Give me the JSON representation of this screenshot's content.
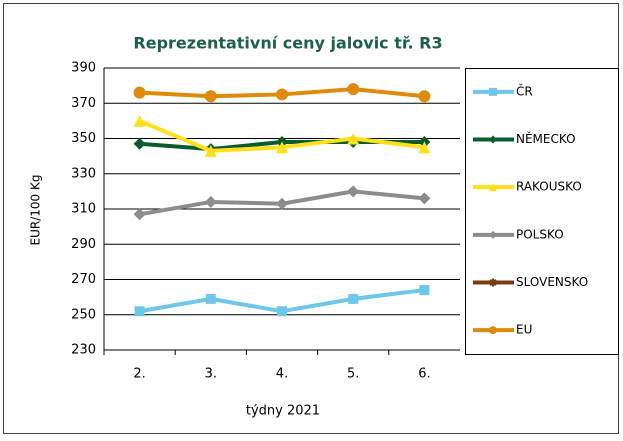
{
  "chart_data": {
    "type": "line",
    "title": "Reprezentativní  ceny jalovic tř. R3",
    "x_label": "týdny 2021",
    "y_label": "EUR/100 Kg",
    "categories": [
      "2.",
      "3.",
      "4.",
      "5.",
      "6."
    ],
    "ylim": [
      230,
      390
    ],
    "yticks": [
      230,
      250,
      270,
      290,
      310,
      330,
      350,
      370,
      390
    ],
    "grid": true,
    "legend": "right",
    "series": [
      {
        "name": "ČR",
        "color": "#6ec6ea",
        "marker": "square",
        "values": [
          252,
          259,
          252,
          259,
          264
        ]
      },
      {
        "name": "NĚMECKO",
        "color": "#0b5a2e",
        "marker": "diamond",
        "values": [
          347,
          344,
          348,
          348,
          348
        ]
      },
      {
        "name": "RAKOUSKO",
        "color": "#ffe01a",
        "marker": "triangle",
        "values": [
          360,
          343,
          345,
          350,
          345
        ]
      },
      {
        "name": "POLSKO",
        "color": "#8c8c8c",
        "marker": "diamond",
        "values": [
          307,
          314,
          313,
          320,
          316
        ]
      },
      {
        "name": "SLOVENSKO",
        "color": "#7a3b10",
        "marker": "star",
        "values": [
          null,
          null,
          null,
          null,
          null
        ]
      },
      {
        "name": "EU",
        "color": "#e08a0b",
        "marker": "circle",
        "values": [
          376,
          374,
          375,
          378,
          374
        ]
      }
    ]
  }
}
